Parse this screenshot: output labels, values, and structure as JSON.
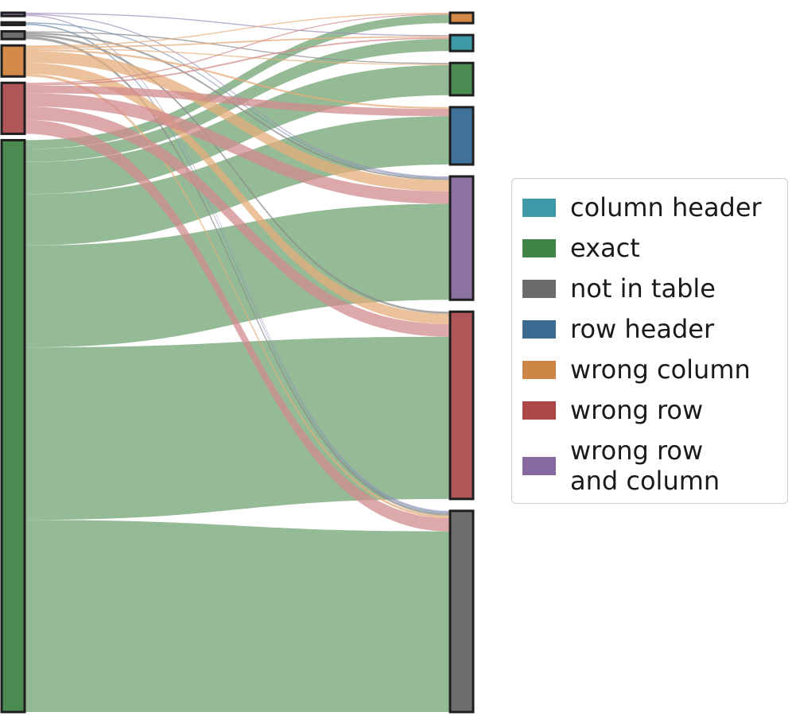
{
  "chart_data": {
    "type": "sankey",
    "legend": {
      "placement": "right",
      "entries": [
        {
          "label": "column header",
          "color": "#3e9aa6"
        },
        {
          "label": "exact",
          "color": "#3f8446"
        },
        {
          "label": "not in table",
          "color": "#6b6b6b"
        },
        {
          "label": "row header",
          "color": "#3b6b91"
        },
        {
          "label": "wrong column",
          "color": "#cd8645"
        },
        {
          "label": "wrong row",
          "color": "#ad4647"
        },
        {
          "label": "wrong row\nand column",
          "color": "#85699f"
        }
      ]
    },
    "source_nodes": [
      "wrong row and column",
      "row header",
      "not in table",
      "wrong column",
      "wrong row",
      "exact"
    ],
    "target_nodes": [
      "wrong column",
      "column header",
      "exact",
      "row header",
      "wrong row and column",
      "wrong row",
      "not in table"
    ],
    "colors": {
      "column header": "#3e9aa6",
      "exact": "#4b8b52",
      "not in table": "#6e6e6e",
      "row header": "#40729a",
      "wrong column": "#d38a48",
      "wrong row": "#b15658",
      "wrong row and column": "#8b72a1"
    },
    "link_colors": {
      "exact": "#95ba96",
      "wrong column": "#e5ad7b",
      "wrong row": "#d18b8d",
      "not in table": "#8b8b8b",
      "row header": "#7a96b4",
      "wrong row and column": "#a192bc"
    },
    "flows": [
      {
        "source": "wrong row and column",
        "target": "column header",
        "value": 0.3
      },
      {
        "source": "wrong row and column",
        "target": "wrong row and column",
        "value": 0.3
      },
      {
        "source": "wrong row and column",
        "target": "not in table",
        "value": 0.3
      },
      {
        "source": "row header",
        "target": "wrong row and column",
        "value": 0.3
      },
      {
        "source": "row header",
        "target": "not in table",
        "value": 0.4
      },
      {
        "source": "not in table",
        "target": "exact",
        "value": 0.3
      },
      {
        "source": "not in table",
        "target": "wrong row and column",
        "value": 0.5
      },
      {
        "source": "not in table",
        "target": "wrong row",
        "value": 0.6
      },
      {
        "source": "not in table",
        "target": "not in table",
        "value": 0.7
      },
      {
        "source": "wrong column",
        "target": "wrong column",
        "value": 0.3
      },
      {
        "source": "wrong column",
        "target": "column header",
        "value": 0.4
      },
      {
        "source": "wrong column",
        "target": "exact",
        "value": 0.3
      },
      {
        "source": "wrong column",
        "target": "row header",
        "value": 0.5
      },
      {
        "source": "wrong column",
        "target": "wrong row and column",
        "value": 3.2
      },
      {
        "source": "wrong column",
        "target": "wrong row",
        "value": 3.0
      },
      {
        "source": "wrong column",
        "target": "not in table",
        "value": 0.7
      },
      {
        "source": "wrong row",
        "target": "wrong column",
        "value": 0.3
      },
      {
        "source": "wrong row",
        "target": "column header",
        "value": 0.4
      },
      {
        "source": "wrong row",
        "target": "row header",
        "value": 2.1
      },
      {
        "source": "wrong row",
        "target": "wrong row and column",
        "value": 3.6
      },
      {
        "source": "wrong row",
        "target": "wrong row",
        "value": 3.6
      },
      {
        "source": "wrong row",
        "target": "not in table",
        "value": 3.8
      },
      {
        "source": "exact",
        "target": "wrong column",
        "value": 2.4
      },
      {
        "source": "exact",
        "target": "column header",
        "value": 3.5
      },
      {
        "source": "exact",
        "target": "exact",
        "value": 8.7
      },
      {
        "source": "exact",
        "target": "row header",
        "value": 13.9
      },
      {
        "source": "exact",
        "target": "wrong row and column",
        "value": 27.6
      },
      {
        "source": "exact",
        "target": "wrong row",
        "value": 46.7
      },
      {
        "source": "exact",
        "target": "not in table",
        "value": 52.0
      }
    ]
  }
}
